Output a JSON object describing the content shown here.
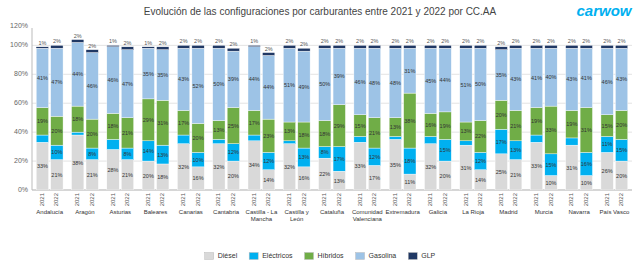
{
  "chart_data": {
    "type": "bar",
    "title": "Evolución de las configuraciones por carburantes entre 2021 y 2022 por CC.AA",
    "categories": [
      "Andalucía",
      "Aragón",
      "Asturias",
      "Baleares",
      "Canarias",
      "Cantabria",
      "Castilla - La\nMancha",
      "Castilla y León",
      "Cataluña",
      "Comunidad\nValenciana",
      "Extremadura",
      "Galicia",
      "La Rioja",
      "Madrid",
      "Murcia",
      "Navarra",
      "País Vasco"
    ],
    "years": [
      "2021",
      "2022"
    ],
    "stacked": true,
    "data_labels": true,
    "grid": true,
    "legend": "bottom",
    "ylim": [
      0,
      112
    ],
    "yticks": [
      {
        "value": 0,
        "label": "0%"
      },
      {
        "value": 20,
        "label": "20%"
      },
      {
        "value": 40,
        "label": "40%"
      },
      {
        "value": 60,
        "label": "60%"
      },
      {
        "value": 80,
        "label": "80%"
      },
      {
        "value": 100,
        "label": "100%"
      }
    ],
    "annotations": [
      "120%"
    ],
    "logo": {
      "text": "carwow",
      "color": "#00b0f0"
    },
    "series": [
      {
        "name": "Diésel",
        "color": "#d9d9d9",
        "values": [
          [
            33,
            21
          ],
          [
            38,
            21
          ],
          [
            28,
            21
          ],
          [
            20,
            18
          ],
          [
            32,
            16
          ],
          [
            32,
            20
          ],
          [
            34,
            14
          ],
          [
            32,
            16
          ],
          [
            22,
            13
          ],
          [
            33,
            17
          ],
          [
            35,
            11
          ],
          [
            32,
            20
          ],
          [
            31,
            14
          ],
          [
            25,
            21
          ],
          [
            33,
            10
          ],
          [
            31,
            10
          ],
          [
            26,
            20
          ]
        ],
        "value_labels": [
          [
            "33%",
            "21%"
          ],
          [
            "38%",
            "21%"
          ],
          [
            "28%",
            "21%"
          ],
          [
            "20%",
            "18%"
          ],
          [
            "32%",
            "16%"
          ],
          [
            "32%",
            "20%"
          ],
          [
            "34%",
            "14%"
          ],
          [
            "32%",
            "16%"
          ],
          [
            "22%",
            "13%"
          ],
          [
            "33%",
            "17%"
          ],
          [
            "35%",
            "11%"
          ],
          [
            "32%",
            "20%"
          ],
          [
            "31%",
            "14%"
          ],
          [
            "25%",
            "21%"
          ],
          [
            "33%",
            "10%"
          ],
          [
            "31%",
            "10%"
          ],
          [
            "26%",
            "20%"
          ]
        ]
      },
      {
        "name": "Eléctricos",
        "color": "#00b0f0",
        "values": [
          [
            5,
            10
          ],
          [
            2,
            8
          ],
          [
            7,
            8
          ],
          [
            14,
            13
          ],
          [
            6,
            10
          ],
          [
            3,
            12
          ],
          [
            4,
            12
          ],
          [
            2,
            13
          ],
          [
            8,
            17
          ],
          [
            4,
            12
          ],
          [
            2,
            18
          ],
          [
            5,
            15
          ],
          [
            3,
            12
          ],
          [
            17,
            13
          ],
          [
            5,
            15
          ],
          [
            5,
            16
          ],
          [
            11,
            15
          ]
        ],
        "value_labels": [
          [
            null,
            "10%"
          ],
          [
            null,
            "8%"
          ],
          [
            null,
            "8%"
          ],
          [
            "14%",
            "13%"
          ],
          [
            null,
            "10%"
          ],
          [
            null,
            "12%"
          ],
          [
            null,
            "12%"
          ],
          [
            null,
            "13%"
          ],
          [
            "8%",
            "17%"
          ],
          [
            null,
            "12%"
          ],
          [
            null,
            "18%"
          ],
          [
            null,
            "15%"
          ],
          [
            null,
            "12%"
          ],
          [
            "17%",
            "13%"
          ],
          [
            null,
            "15%"
          ],
          [
            null,
            "16%"
          ],
          [
            "11%",
            "15%"
          ]
        ]
      },
      {
        "name": "Híbridos",
        "color": "#70ad47",
        "values": [
          [
            19,
            20
          ],
          [
            18,
            20
          ],
          [
            18,
            21
          ],
          [
            29,
            31
          ],
          [
            17,
            20
          ],
          [
            13,
            25
          ],
          [
            17,
            23
          ],
          [
            13,
            18
          ],
          [
            18,
            29
          ],
          [
            15,
            21
          ],
          [
            13,
            38
          ],
          [
            16,
            19
          ],
          [
            13,
            22
          ],
          [
            20,
            21
          ],
          [
            19,
            33
          ],
          [
            19,
            31
          ],
          [
            15,
            20
          ]
        ],
        "value_labels": [
          [
            "19%",
            "20%"
          ],
          [
            "18%",
            "20%"
          ],
          [
            "18%",
            "21%"
          ],
          [
            "29%",
            "31%"
          ],
          [
            "17%",
            "20%"
          ],
          [
            "13%",
            "25%"
          ],
          [
            "17%",
            "23%"
          ],
          [
            "13%",
            "18%"
          ],
          [
            "18%",
            "29%"
          ],
          [
            "15%",
            "21%"
          ],
          [
            "13%",
            "38%"
          ],
          [
            "16%",
            "19%"
          ],
          [
            "13%",
            "22%"
          ],
          [
            "20%",
            "21%"
          ],
          [
            "19%",
            "33%"
          ],
          [
            "19%",
            "31%"
          ],
          [
            "15%",
            "20%"
          ]
        ]
      },
      {
        "name": "Gasolina",
        "color": "#9dc3e6",
        "values": [
          [
            41,
            47
          ],
          [
            44,
            46
          ],
          [
            46,
            47
          ],
          [
            35,
            35
          ],
          [
            43,
            52
          ],
          [
            50,
            39
          ],
          [
            44,
            44
          ],
          [
            51,
            49
          ],
          [
            50,
            39
          ],
          [
            46,
            48
          ],
          [
            48,
            31
          ],
          [
            45,
            44
          ],
          [
            51,
            50
          ],
          [
            35,
            43
          ],
          [
            41,
            40
          ],
          [
            43,
            41
          ],
          [
            46,
            43
          ]
        ],
        "value_labels": [
          [
            "41%",
            "47%"
          ],
          [
            "44%",
            "46%"
          ],
          [
            "46%",
            "47%"
          ],
          [
            "35%",
            "35%"
          ],
          [
            "43%",
            "52%"
          ],
          [
            "50%",
            "39%"
          ],
          [
            "44%",
            "44%"
          ],
          [
            "51%",
            "49%"
          ],
          [
            "50%",
            "39%"
          ],
          [
            "46%",
            "48%"
          ],
          [
            "48%",
            "31%"
          ],
          [
            "45%",
            "44%"
          ],
          [
            "51%",
            "50%"
          ],
          [
            "35%",
            "43%"
          ],
          [
            "41%",
            "40%"
          ],
          [
            "43%",
            "41%"
          ],
          [
            "46%",
            "43%"
          ]
        ]
      },
      {
        "name": "GLP",
        "color": "#203864",
        "values": [
          [
            1,
            2
          ],
          [
            2,
            2
          ],
          [
            1,
            2
          ],
          [
            1,
            2
          ],
          [
            2,
            2
          ],
          [
            2,
            2
          ],
          [
            1,
            2
          ],
          [
            2,
            2
          ],
          [
            2,
            2
          ],
          [
            2,
            2
          ],
          [
            2,
            2
          ],
          [
            2,
            2
          ],
          [
            2,
            2
          ],
          [
            2,
            2
          ],
          [
            2,
            2
          ],
          [
            2,
            2
          ],
          [
            2,
            2
          ]
        ]
      }
    ],
    "top_labels": [
      [
        "1%",
        "2%"
      ],
      [
        "2%",
        "2%"
      ],
      [
        "1%",
        "2%"
      ],
      [
        "1%",
        "2%"
      ],
      [
        "2%",
        "2%"
      ],
      [
        "2%",
        "2%"
      ],
      [
        "1%",
        "2%"
      ],
      [
        "2%",
        "2%"
      ],
      [
        "2%",
        "2%"
      ],
      [
        "2%",
        "2%"
      ],
      [
        "2%",
        "2%"
      ],
      [
        "2%",
        "2%"
      ],
      [
        "2%",
        "2%"
      ],
      [
        "2%",
        "2%"
      ],
      [
        "2%",
        "2%"
      ],
      [
        "2%",
        "2%"
      ],
      [
        "2%",
        "2%"
      ]
    ]
  }
}
